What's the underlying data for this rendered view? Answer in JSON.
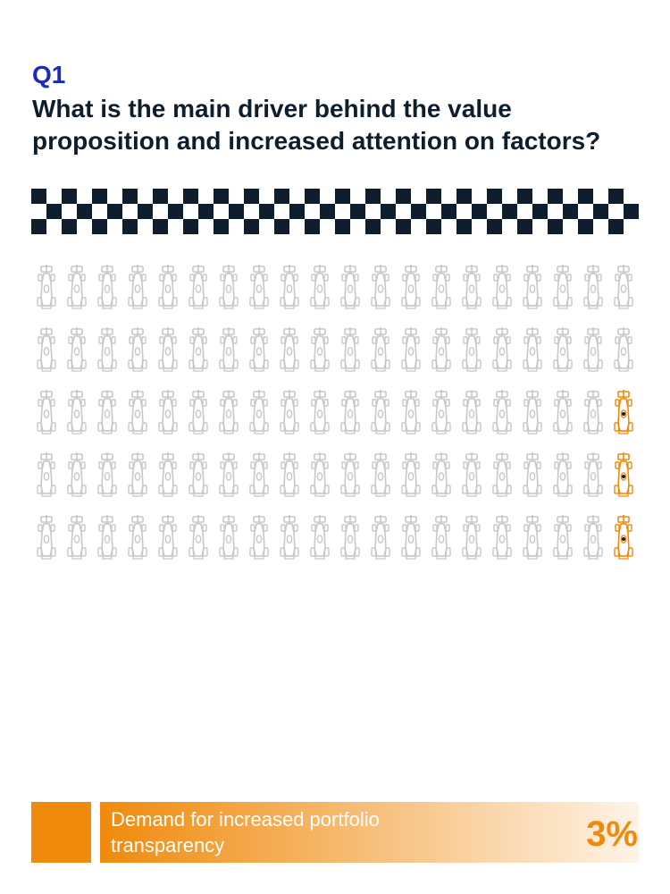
{
  "question": {
    "number": "Q1",
    "title": "What is the main driver behind the value proposition and increased attention on factors?"
  },
  "colors": {
    "question_number": "#1a2bb8",
    "title": "#0f1e2e",
    "checker": "#0f1e2e",
    "inactive_icon": "#c8c8c8",
    "active_icon": "#f08a0c",
    "legend_gradient_end": "#fef3e6"
  },
  "icon": "race-car-icon",
  "chart_data": {
    "type": "pictogram",
    "rows": 5,
    "columns": 20,
    "total": 100,
    "highlighted": 3,
    "highlight_positions": "rightmost icon of rows 3, 4 and 5",
    "series": [
      {
        "name": "Demand for increased portfolio transparency",
        "value": 3,
        "unit": "%"
      }
    ]
  },
  "legend": {
    "label": "Demand for increased portfolio transparency",
    "value": "3%"
  }
}
